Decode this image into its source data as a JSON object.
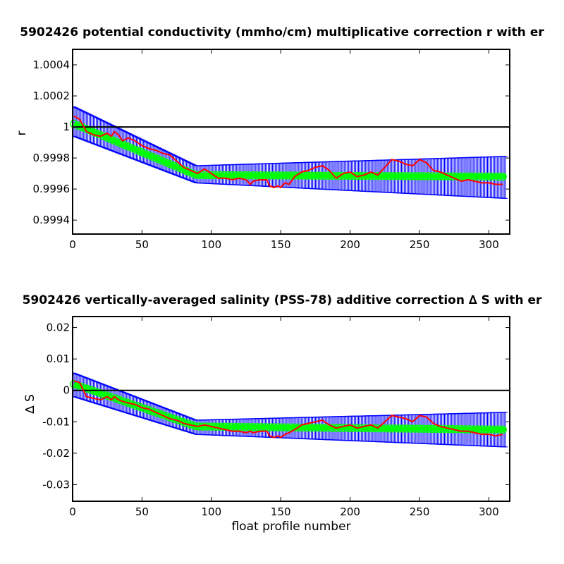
{
  "chart_data": [
    {
      "type": "line",
      "title": "5902426 potential conductivity (mmho/cm) multiplicative correction r with er",
      "xlabel": "",
      "ylabel": "r",
      "xlim": [
        0,
        315
      ],
      "ylim": [
        0.99931,
        1.0005
      ],
      "xticks": [
        "0",
        "50",
        "100",
        "150",
        "200",
        "250",
        "300"
      ],
      "yticks": [
        "0.9994",
        "0.9996",
        "0.9998",
        "1",
        "1.0002",
        "1.0004"
      ],
      "reference_line": 1,
      "grid": false,
      "colors": {
        "individual": "#ff0000",
        "fit": "#00ff00",
        "error": "#0000ff",
        "reference": "#000000"
      },
      "fit": {
        "x": [
          1,
          89,
          312
        ],
        "y": [
          1.00002,
          0.99969,
          0.99968
        ],
        "err_low": [
          0.99994,
          0.99964,
          0.99954
        ],
        "err_high": [
          1.00013,
          0.99975,
          0.99981
        ]
      },
      "series": [
        {
          "x": [
            1,
            5,
            10,
            15,
            20,
            25,
            28,
            30,
            33,
            36,
            40,
            45,
            50,
            55,
            60,
            65,
            70,
            75,
            80,
            85,
            90,
            95,
            100,
            105,
            110,
            115,
            120,
            125,
            128,
            130,
            135,
            140,
            142,
            145,
            148,
            150,
            153,
            156,
            160,
            165,
            170,
            175,
            180,
            185,
            190,
            195,
            200,
            205,
            210,
            215,
            220,
            225,
            230,
            235,
            240,
            245,
            250,
            255,
            260,
            265,
            270,
            275,
            280,
            285,
            290,
            295,
            300,
            305,
            310
          ],
          "y": [
            1.00007,
            1.00005,
            0.99997,
            0.99995,
            0.99994,
            0.99996,
            0.99994,
            0.99997,
            0.99995,
            0.99991,
            0.99993,
            0.99991,
            0.99988,
            0.99986,
            0.99985,
            0.99983,
            0.99982,
            0.99978,
            0.99974,
            0.99972,
            0.9997,
            0.99973,
            0.9997,
            0.99967,
            0.99967,
            0.99966,
            0.99967,
            0.99966,
            0.99963,
            0.99965,
            0.99966,
            0.99966,
            0.99962,
            0.99961,
            0.99962,
            0.99961,
            0.99964,
            0.99963,
            0.99968,
            0.99971,
            0.99972,
            0.99974,
            0.99975,
            0.99972,
            0.99967,
            0.9997,
            0.99971,
            0.99968,
            0.99969,
            0.99971,
            0.99969,
            0.99974,
            0.99979,
            0.99978,
            0.99976,
            0.99975,
            0.99979,
            0.99977,
            0.99972,
            0.99971,
            0.99969,
            0.99967,
            0.99965,
            0.99966,
            0.99965,
            0.99964,
            0.99964,
            0.99963,
            0.99963
          ]
        }
      ]
    },
    {
      "type": "line",
      "title": "5902426 vertically-averaged salinity (PSS-78) additive correction ∆ S with er",
      "xlabel": "float profile number",
      "ylabel": "∆ S",
      "xlim": [
        0,
        315
      ],
      "ylim": [
        -0.0353,
        0.0235
      ],
      "xticks": [
        "0",
        "50",
        "100",
        "150",
        "200",
        "250",
        "300"
      ],
      "yticks": [
        "-0.03",
        "-0.02",
        "-0.01",
        "0",
        "0.01",
        "0.02"
      ],
      "reference_line": 0,
      "grid": false,
      "colors": {
        "individual": "#ff0000",
        "fit": "#00ff00",
        "error": "#0000ff",
        "reference": "#000000"
      },
      "fit": {
        "x": [
          1,
          89,
          312
        ],
        "y": [
          0.002,
          -0.0115,
          -0.0125
        ],
        "err_low": [
          -0.002,
          -0.014,
          -0.018
        ],
        "err_high": [
          0.0055,
          -0.0095,
          -0.007
        ]
      },
      "series": [
        {
          "x": [
            1,
            5,
            10,
            15,
            20,
            25,
            28,
            30,
            33,
            36,
            40,
            45,
            50,
            55,
            60,
            65,
            70,
            75,
            80,
            85,
            90,
            95,
            100,
            105,
            110,
            115,
            120,
            125,
            128,
            130,
            135,
            140,
            142,
            145,
            148,
            150,
            153,
            156,
            160,
            165,
            170,
            175,
            180,
            185,
            190,
            195,
            200,
            205,
            210,
            215,
            220,
            225,
            230,
            235,
            240,
            245,
            250,
            255,
            260,
            265,
            270,
            275,
            280,
            285,
            290,
            295,
            300,
            305,
            310
          ],
          "y": [
            0.003,
            0.0025,
            -0.002,
            -0.0025,
            -0.003,
            -0.002,
            -0.003,
            -0.002,
            -0.003,
            -0.0035,
            -0.004,
            -0.0045,
            -0.0055,
            -0.006,
            -0.007,
            -0.008,
            -0.009,
            -0.0095,
            -0.0105,
            -0.011,
            -0.0115,
            -0.011,
            -0.0115,
            -0.012,
            -0.0125,
            -0.013,
            -0.013,
            -0.0135,
            -0.013,
            -0.0135,
            -0.013,
            -0.013,
            -0.0145,
            -0.015,
            -0.0145,
            -0.015,
            -0.014,
            -0.0135,
            -0.0125,
            -0.011,
            -0.0105,
            -0.01,
            -0.0095,
            -0.011,
            -0.012,
            -0.0115,
            -0.011,
            -0.012,
            -0.0115,
            -0.011,
            -0.012,
            -0.01,
            -0.008,
            -0.0085,
            -0.009,
            -0.01,
            -0.008,
            -0.0085,
            -0.0105,
            -0.0115,
            -0.012,
            -0.0125,
            -0.013,
            -0.013,
            -0.0135,
            -0.014,
            -0.014,
            -0.0145,
            -0.014
          ]
        }
      ]
    }
  ]
}
